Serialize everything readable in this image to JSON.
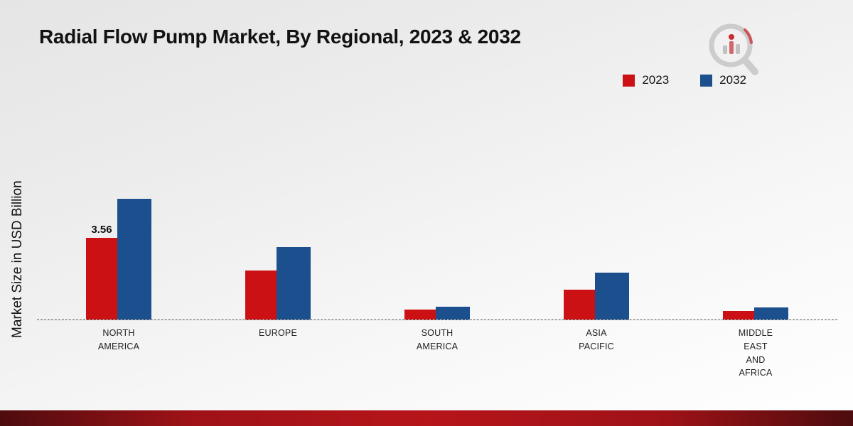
{
  "title": "Radial Flow Pump Market, By Regional, 2023 & 2032",
  "ylabel": "Market Size in USD Billion",
  "legend": [
    {
      "label": "2023",
      "color": "#cc1114"
    },
    {
      "label": "2032",
      "color": "#1c4f8e"
    }
  ],
  "chart_data": {
    "type": "bar",
    "title": "Radial Flow Pump Market, By Regional, 2023 & 2032",
    "ylabel": "Market Size in USD Billion",
    "categories": [
      "NORTH\nAMERICA",
      "EUROPE",
      "SOUTH\nAMERICA",
      "ASIA\nPACIFIC",
      "MIDDLE\nEAST\nAND\nAFRICA"
    ],
    "series": [
      {
        "name": "2023",
        "color": "#cc1114",
        "values": [
          3.56,
          2.15,
          0.42,
          1.3,
          0.38
        ]
      },
      {
        "name": "2032",
        "color": "#1c4f8e",
        "values": [
          5.27,
          3.17,
          0.57,
          2.05,
          0.53
        ]
      }
    ],
    "annotations": [
      {
        "series": "2023",
        "category_index": 0,
        "text": "3.56"
      }
    ],
    "ylim": [
      0,
      6
    ],
    "grid": false,
    "baseline_style": "dashed",
    "legend_position": "top-right"
  },
  "branding": {
    "logo_icon": "market-research-magnifier-logo"
  }
}
